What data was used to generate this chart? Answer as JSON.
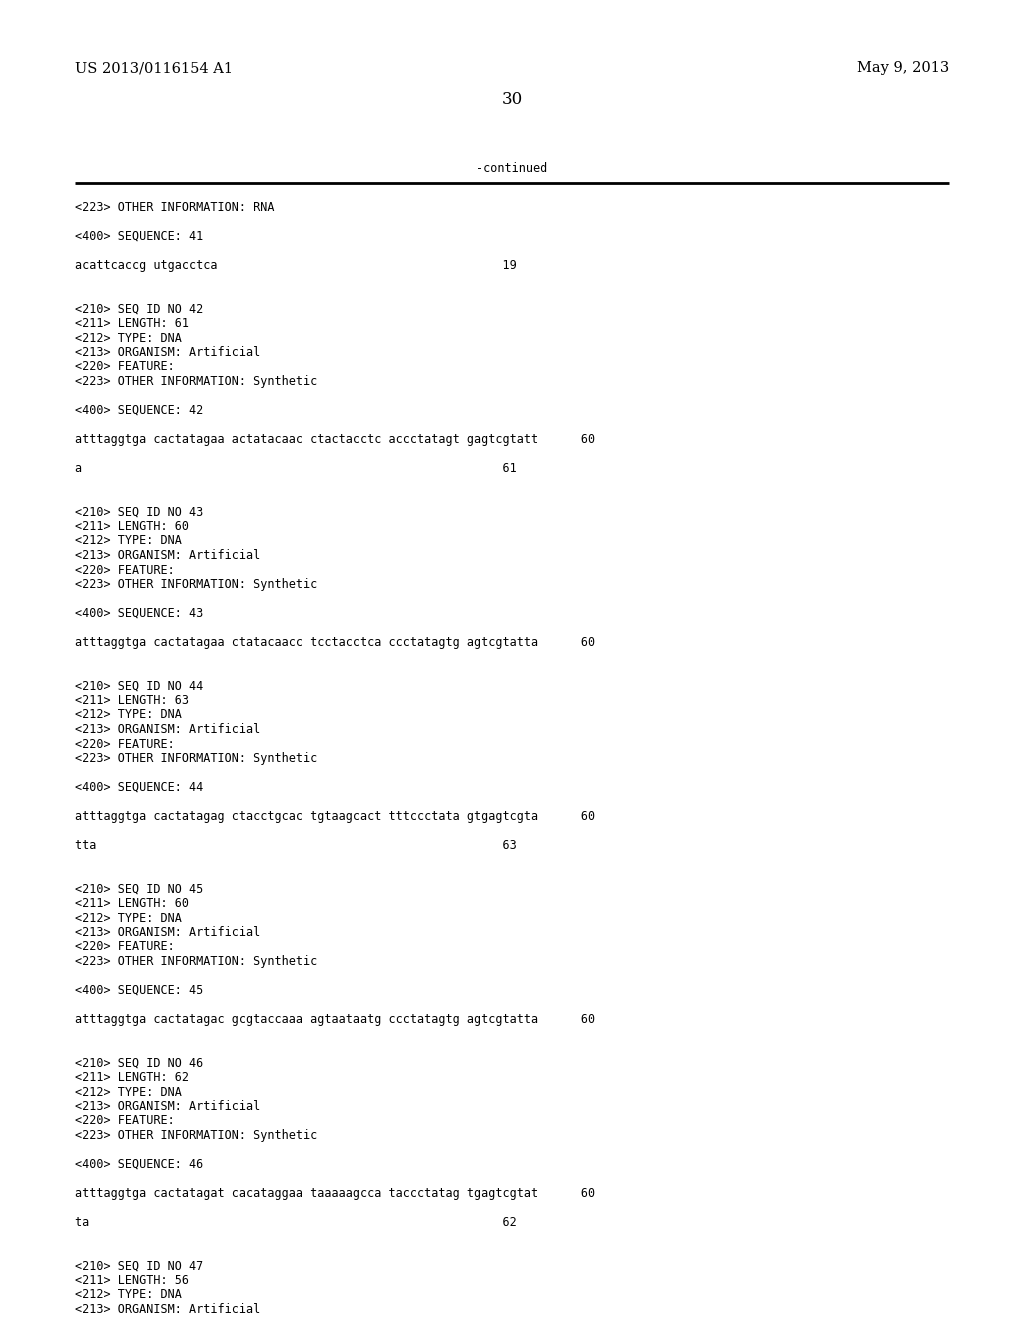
{
  "header_left": "US 2013/0116154 A1",
  "header_right": "May 9, 2013",
  "page_number": "30",
  "continued_label": "-continued",
  "background_color": "#ffffff",
  "text_color": "#000000",
  "font_size": 8.5,
  "header_font_size": 10.5,
  "page_num_font_size": 12,
  "figwidth": 10.24,
  "figheight": 13.2,
  "dpi": 100,
  "lines": [
    "<223> OTHER INFORMATION: RNA",
    "",
    "<400> SEQUENCE: 41",
    "",
    "acattcaccg utgacctca                                        19",
    "",
    "",
    "<210> SEQ ID NO 42",
    "<211> LENGTH: 61",
    "<212> TYPE: DNA",
    "<213> ORGANISM: Artificial",
    "<220> FEATURE:",
    "<223> OTHER INFORMATION: Synthetic",
    "",
    "<400> SEQUENCE: 42",
    "",
    "atttaggtga cactatagaa actatacaac ctactacctc accctatagt gagtcgtatt      60",
    "",
    "a                                                           61",
    "",
    "",
    "<210> SEQ ID NO 43",
    "<211> LENGTH: 60",
    "<212> TYPE: DNA",
    "<213> ORGANISM: Artificial",
    "<220> FEATURE:",
    "<223> OTHER INFORMATION: Synthetic",
    "",
    "<400> SEQUENCE: 43",
    "",
    "atttaggtga cactatagaa ctatacaacc tcctacctca ccctatagtg agtcgtatta      60",
    "",
    "",
    "<210> SEQ ID NO 44",
    "<211> LENGTH: 63",
    "<212> TYPE: DNA",
    "<213> ORGANISM: Artificial",
    "<220> FEATURE:",
    "<223> OTHER INFORMATION: Synthetic",
    "",
    "<400> SEQUENCE: 44",
    "",
    "atttaggtga cactatagag ctacctgcac tgtaagcact tttccctata gtgagtcgta      60",
    "",
    "tta                                                         63",
    "",
    "",
    "<210> SEQ ID NO 45",
    "<211> LENGTH: 60",
    "<212> TYPE: DNA",
    "<213> ORGANISM: Artificial",
    "<220> FEATURE:",
    "<223> OTHER INFORMATION: Synthetic",
    "",
    "<400> SEQUENCE: 45",
    "",
    "atttaggtga cactatagac gcgtaccaaa agtaataatg ccctatagtg agtcgtatta      60",
    "",
    "",
    "<210> SEQ ID NO 46",
    "<211> LENGTH: 62",
    "<212> TYPE: DNA",
    "<213> ORGANISM: Artificial",
    "<220> FEATURE:",
    "<223> OTHER INFORMATION: Synthetic",
    "",
    "<400> SEQUENCE: 46",
    "",
    "atttaggtga cactatagat cacataggaa taaaaagcca taccctatag tgagtcgtat      60",
    "",
    "ta                                                          62",
    "",
    "",
    "<210> SEQ ID NO 47",
    "<211> LENGTH: 56",
    "<212> TYPE: DNA",
    "<213> ORGANISM: Artificial"
  ]
}
